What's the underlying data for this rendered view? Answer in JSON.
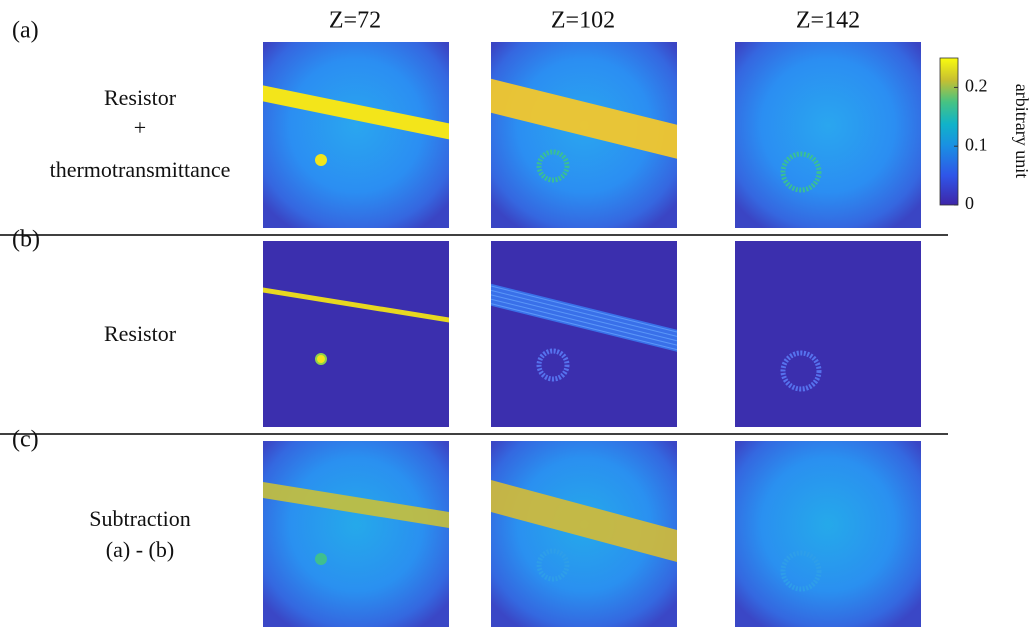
{
  "columns": [
    "Z=72",
    "Z=102",
    "Z=142"
  ],
  "rows": [
    {
      "label": "(a)",
      "lines": [
        "Resistor",
        "+",
        "thermotransmittance"
      ]
    },
    {
      "label": "(b)",
      "lines": [
        "Resistor"
      ]
    },
    {
      "label": "(c)",
      "lines": [
        "Subtraction",
        "(a) - (b)"
      ]
    }
  ],
  "colorbar": {
    "label": "arbitrary unit",
    "lim": [
      0,
      0.25
    ],
    "ticks": [
      0,
      0.1,
      0.2
    ]
  }
}
